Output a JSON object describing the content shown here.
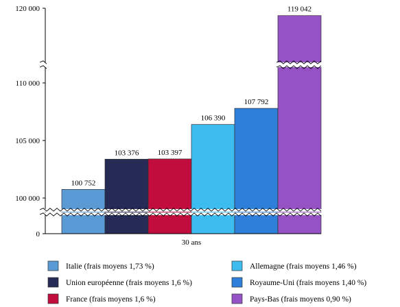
{
  "chart_data": {
    "type": "bar",
    "title": "",
    "xlabel": "",
    "ylabel": "",
    "categories": [
      "30 ans"
    ],
    "y_axis_break": true,
    "y_tick_labels": [
      "0",
      "100 000",
      "105 000",
      "110 000",
      "120 000"
    ],
    "y_ticks": [
      0,
      100000,
      105000,
      110000,
      120000
    ],
    "series": [
      {
        "name": "Italie (frais moyens 1,73 %)",
        "value": 100752,
        "label": "100 752",
        "color": "#5b9bd5"
      },
      {
        "name": "Union européenne (frais moyens 1,6 %)",
        "value": 103376,
        "label": "103 376",
        "color": "#262b55"
      },
      {
        "name": "France (frais moyens 1,6 %)",
        "value": 103397,
        "label": "103 397",
        "color": "#c00d3e"
      },
      {
        "name": "Allemagne (frais moyens 1,46 %)",
        "value": 106390,
        "label": "106 390",
        "color": "#3dbcf0"
      },
      {
        "name": "Royaume-Uni (frais moyens 1,40 %)",
        "value": 107792,
        "label": "107 792",
        "color": "#2e7fd9"
      },
      {
        "name": "Pays-Bas (frais moyens 0,90 %)",
        "value": 119042,
        "label": "119 042",
        "color": "#9452c4"
      }
    ],
    "legend_position": "bottom",
    "grid": false
  }
}
